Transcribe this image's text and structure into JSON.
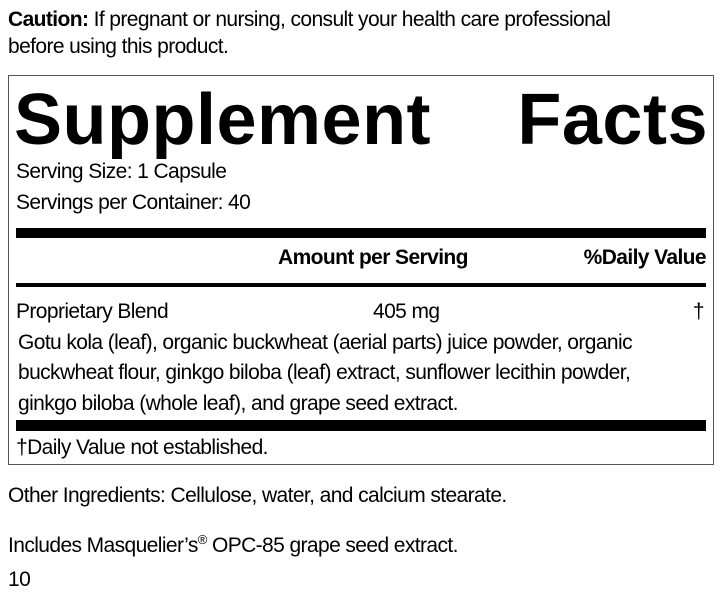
{
  "caution": {
    "label": "Caution:",
    "line1": " If pregnant or nursing, consult your health care professional",
    "line2": "before using this product."
  },
  "facts": {
    "title_word1": "Supplement",
    "title_word2": "Facts",
    "serving_size": "Serving Size: 1 Capsule",
    "servings_per_container": "Servings per Container: 40",
    "header_amount": "Amount per Serving",
    "header_dv": "%Daily Value",
    "rows": [
      {
        "name": "Proprietary Blend",
        "amount": "405 mg",
        "dv": "†"
      }
    ],
    "ingredients_lines": [
      "Gotu kola (leaf), organic buckwheat (aerial parts) juice powder, organic",
      "buckwheat flour, ginkgo biloba (leaf) extract, sunflower lecithin powder,",
      "ginkgo biloba (whole leaf), and grape seed extract."
    ],
    "footnote": "†Daily Value not established."
  },
  "other_ingredients": "Other Ingredients: Cellulose, water, and calcium stearate.",
  "includes": {
    "before": "Includes Masquelier’s",
    "reg": "®",
    "after": " OPC-85 grape seed extract."
  },
  "code": "10"
}
